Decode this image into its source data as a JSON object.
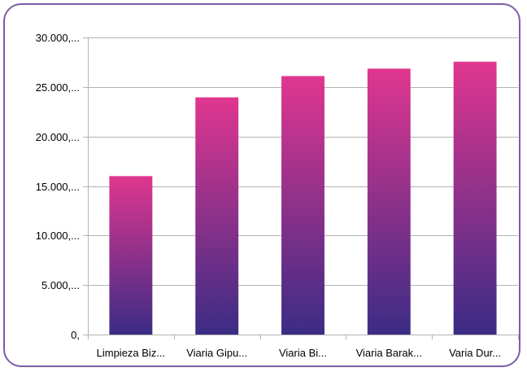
{
  "colors": {
    "frame": "#7e5ca6",
    "grid": "#b3b3b3",
    "bar_top": "#e0368f",
    "bar_bottom": "#3b2c85"
  },
  "chart_data": {
    "type": "bar",
    "title": "",
    "xlabel": "",
    "ylabel": "",
    "categories": [
      "Limpieza Biz...",
      "Viaria Gipu...",
      "Viaria Bi...",
      "Viaria Barak...",
      "Varia Dur..."
    ],
    "series": [
      {
        "values": [
          16000,
          23950,
          26100,
          26850,
          27550
        ]
      }
    ],
    "ylim": [
      0,
      30000
    ],
    "yticks": [
      0,
      5000,
      10000,
      15000,
      20000,
      25000,
      30000
    ],
    "ytick_labels": [
      "0,",
      "5.000,...",
      "10.000,...",
      "15.000,...",
      "20.000,...",
      "25.000,...",
      "30.000,..."
    ],
    "grid": true,
    "legend": "none"
  }
}
